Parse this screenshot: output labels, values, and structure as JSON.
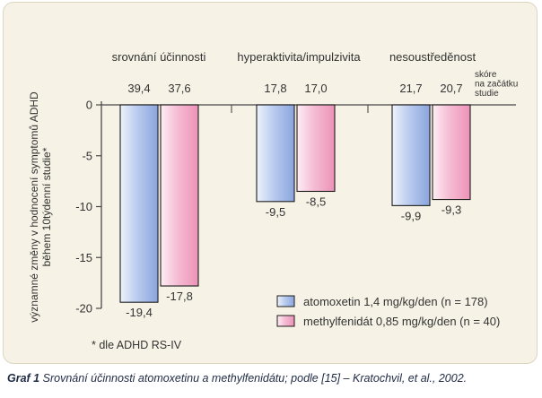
{
  "chart_data": {
    "type": "bar",
    "categories": [
      "srovnání účinnosti",
      "hyperaktivita/impulzivita",
      "nesoustředěnost"
    ],
    "series": [
      {
        "name": "atomoxetin 1,4 mg/kg/den (n = 178)",
        "color": "#9fb6e6",
        "values": [
          -19.4,
          -9.5,
          -9.9
        ],
        "value_labels": [
          "-19,4",
          "-9,5",
          "-9,9"
        ],
        "baseline_labels": [
          "39,4",
          "17,8",
          "21,7"
        ]
      },
      {
        "name": "methylfenidát 0,85 mg/kg/den (n = 40)",
        "color": "#f2a8c6",
        "values": [
          -17.8,
          -8.5,
          -9.3
        ],
        "value_labels": [
          "-17,8",
          "-8,5",
          "-9,3"
        ],
        "baseline_labels": [
          "37,6",
          "17,0",
          "20,7"
        ]
      }
    ],
    "ylabel": "významné změny v hodnocení symptomů ADHD během 10týdenní studie*",
    "ylim": [
      -20,
      0
    ],
    "yticks": [
      0,
      -5,
      -10,
      -15,
      -20
    ],
    "ytick_labels": [
      "0",
      "-5",
      "-10",
      "-15",
      "-20"
    ],
    "baseline_note": "skóre na začátku studie",
    "footnote": "* dle ADHD RS-IV",
    "legend_position": "bottom-right",
    "grid": false
  },
  "caption": {
    "label": "Graf 1",
    "text": "Srovnání účinnosti atomoxetinu a methylfenidátu; podle [15] – Kratochvil, et al., 2002."
  }
}
